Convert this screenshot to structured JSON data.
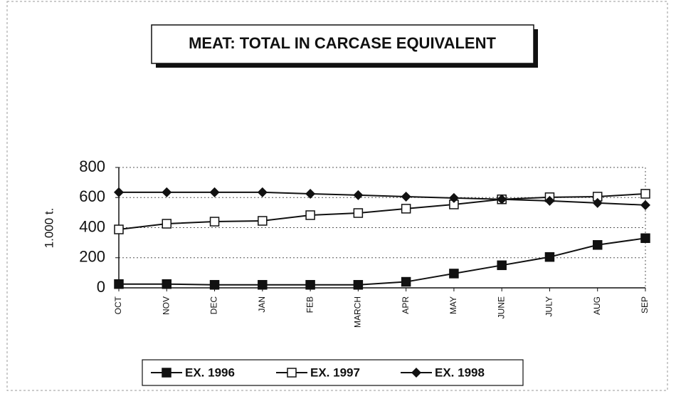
{
  "chart_data": {
    "type": "line",
    "title": "MEAT: TOTAL IN CARCASE EQUIVALENT",
    "y_label": "1.000 t.",
    "categories": [
      "OCT",
      "NOV",
      "DEC",
      "JAN",
      "FEB",
      "MARCH",
      "APR",
      "MAY",
      "JUNE",
      "JULY",
      "AUG",
      "SEP"
    ],
    "series": [
      {
        "name": "EX. 1996",
        "color": "#111111",
        "marker": "square-filled",
        "values": [
          25,
          25,
          20,
          20,
          20,
          20,
          40,
          95,
          150,
          205,
          285,
          330
        ]
      },
      {
        "name": "EX. 1997",
        "color": "#111111",
        "marker": "square-open",
        "values": [
          388,
          426,
          440,
          445,
          483,
          497,
          526,
          554,
          588,
          602,
          606,
          625
        ]
      },
      {
        "name": "EX. 1998",
        "color": "#111111",
        "marker": "diamond",
        "values": [
          635,
          635,
          635,
          635,
          625,
          616,
          606,
          597,
          588,
          578,
          564,
          550
        ]
      }
    ],
    "ylim": [
      0,
      800
    ],
    "yticks": [
      0,
      200,
      400,
      600,
      800
    ],
    "grid": true,
    "legend": "bottom"
  }
}
